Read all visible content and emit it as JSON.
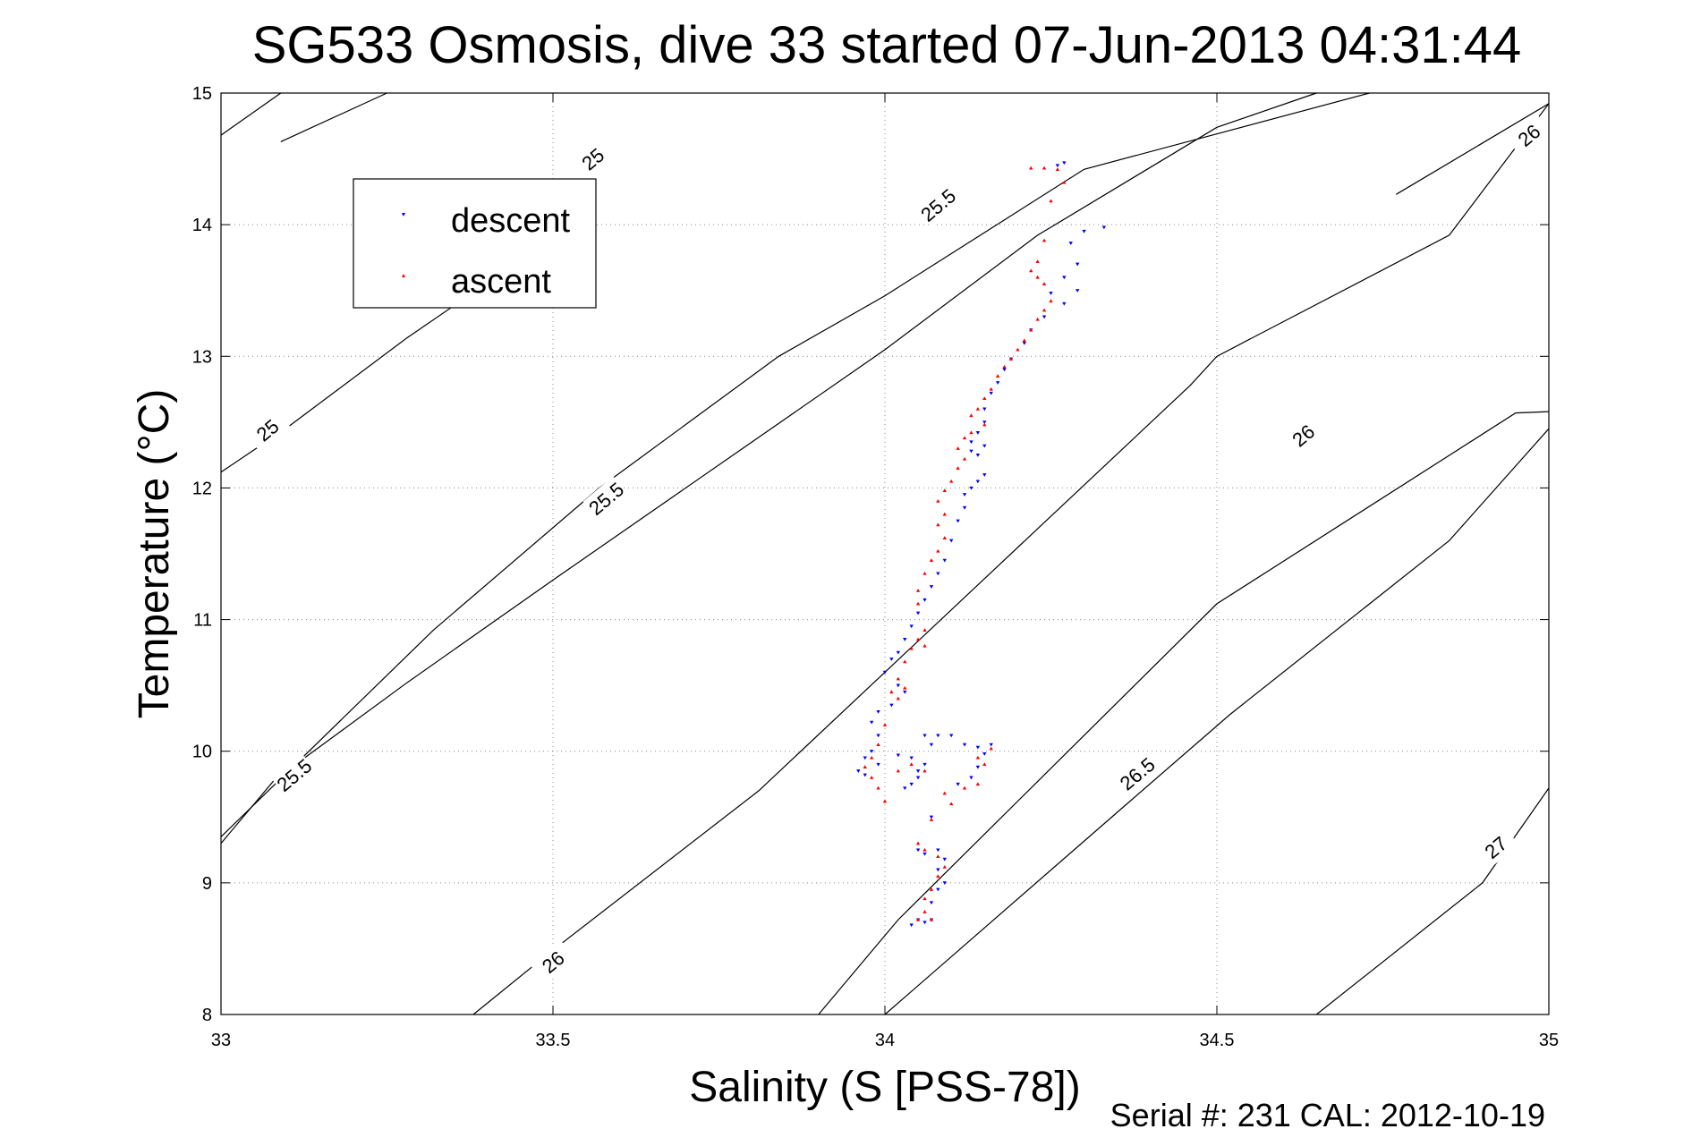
{
  "chart_data": {
    "type": "scatter",
    "title": "SG533 Osmosis, dive 33 started 07-Jun-2013 04:31:44",
    "xlabel": "Salinity (S [PSS-78])",
    "ylabel": "Temperature (°C)",
    "xlim": [
      33,
      35
    ],
    "ylim": [
      8,
      15
    ],
    "xticks": [
      "33",
      "33.5",
      "34",
      "34.5",
      "35"
    ],
    "yticks": [
      "8",
      "9",
      "10",
      "11",
      "12",
      "13",
      "14",
      "15"
    ],
    "grid": true,
    "legend_position": "top-left",
    "footer": "Serial #: 231  CAL: 2012-10-19",
    "density_contours": [
      {
        "label": "25",
        "points": [
          [
            33.0,
            14.68
          ],
          [
            33.09,
            15.0
          ]
        ],
        "label_at": [
          33.56,
          14.5
        ]
      },
      {
        "label": "25",
        "points": [
          [
            33.0,
            12.12
          ],
          [
            33.1,
            12.46
          ],
          [
            33.28,
            13.14
          ],
          [
            33.39,
            13.52
          ]
        ],
        "label_at": [
          33.07,
          12.44
        ]
      },
      {
        "label": "25.5",
        "points": [
          [
            33.09,
            14.63
          ],
          [
            33.25,
            15.0
          ]
        ],
        "label_at": [
          34.08,
          14.15
        ]
      },
      {
        "label": "25.5",
        "points": [
          [
            33.0,
            9.35
          ],
          [
            33.32,
            10.92
          ],
          [
            33.57,
            12.0
          ],
          [
            33.84,
            13.0
          ],
          [
            34.0,
            13.46
          ],
          [
            34.3,
            14.42
          ],
          [
            34.73,
            15.0
          ]
        ],
        "label_at": [
          33.58,
          11.92
        ]
      },
      {
        "label": "25.5",
        "points": [
          [
            33.0,
            9.3
          ],
          [
            33.08,
            9.78
          ],
          [
            33.28,
            10.52
          ],
          [
            33.5,
            11.3
          ],
          [
            34.0,
            13.05
          ],
          [
            34.23,
            13.92
          ],
          [
            34.5,
            14.74
          ],
          [
            34.65,
            15.0
          ]
        ],
        "label_at": [
          33.11,
          9.82
        ]
      },
      {
        "label": "26",
        "points": [
          [
            33.38,
            8.0
          ],
          [
            33.49,
            8.45
          ],
          [
            33.81,
            9.7
          ],
          [
            34.0,
            10.6
          ],
          [
            34.46,
            12.78
          ],
          [
            34.5,
            13.0
          ],
          [
            34.85,
            13.92
          ],
          [
            35.0,
            14.92
          ]
        ],
        "label_at": [
          33.5,
          8.4
        ]
      },
      {
        "label": "26",
        "points": [
          [
            33.9,
            8.0
          ],
          [
            34.02,
            8.72
          ],
          [
            34.5,
            11.12
          ],
          [
            34.95,
            12.57
          ],
          [
            35.0,
            12.58
          ]
        ],
        "label_at": [
          34.63,
          12.4
        ]
      },
      {
        "label": "26",
        "points": [
          [
            34.77,
            14.23
          ],
          [
            35.0,
            14.92
          ]
        ],
        "label_at": [
          34.97,
          14.68
        ]
      },
      {
        "label": "26.5",
        "points": [
          [
            34.0,
            8.0
          ],
          [
            34.36,
            9.58
          ],
          [
            34.52,
            10.28
          ],
          [
            34.85,
            11.6
          ],
          [
            35.0,
            12.45
          ]
        ],
        "label_at": [
          34.38,
          9.83
        ]
      },
      {
        "label": "27",
        "points": [
          [
            34.65,
            8.0
          ],
          [
            34.9,
            9.0
          ],
          [
            35.0,
            9.72
          ]
        ],
        "label_at": [
          34.92,
          9.27
        ]
      }
    ],
    "series": [
      {
        "name": "descent",
        "color": "#0000ff",
        "marker": "triangle-down",
        "points": [
          [
            34.27,
            14.47
          ],
          [
            34.26,
            14.45
          ],
          [
            34.3,
            13.95
          ],
          [
            34.33,
            13.98
          ],
          [
            34.28,
            13.86
          ],
          [
            34.29,
            13.7
          ],
          [
            34.27,
            13.6
          ],
          [
            34.29,
            13.5
          ],
          [
            34.25,
            13.48
          ],
          [
            34.27,
            13.4
          ],
          [
            34.24,
            13.3
          ],
          [
            34.22,
            13.2
          ],
          [
            34.21,
            13.1
          ],
          [
            34.19,
            12.98
          ],
          [
            34.18,
            12.9
          ],
          [
            34.17,
            12.8
          ],
          [
            34.16,
            12.72
          ],
          [
            34.15,
            12.6
          ],
          [
            34.15,
            12.5
          ],
          [
            34.14,
            12.42
          ],
          [
            34.13,
            12.35
          ],
          [
            34.15,
            12.32
          ],
          [
            34.14,
            12.25
          ],
          [
            34.13,
            12.28
          ],
          [
            34.15,
            12.1
          ],
          [
            34.14,
            12.05
          ],
          [
            34.13,
            12.0
          ],
          [
            34.12,
            11.95
          ],
          [
            34.12,
            11.85
          ],
          [
            34.11,
            11.75
          ],
          [
            34.1,
            11.6
          ],
          [
            34.09,
            11.45
          ],
          [
            34.08,
            11.35
          ],
          [
            34.07,
            11.25
          ],
          [
            34.06,
            11.15
          ],
          [
            34.05,
            11.05
          ],
          [
            34.04,
            10.95
          ],
          [
            34.03,
            10.85
          ],
          [
            34.02,
            10.75
          ],
          [
            34.01,
            10.7
          ],
          [
            34.0,
            10.6
          ],
          [
            34.02,
            10.5
          ],
          [
            34.03,
            10.45
          ],
          [
            34.01,
            10.35
          ],
          [
            33.99,
            10.3
          ],
          [
            33.98,
            10.22
          ],
          [
            33.99,
            10.12
          ],
          [
            33.98,
            10.0
          ],
          [
            33.97,
            9.95
          ],
          [
            33.96,
            9.85
          ],
          [
            33.97,
            9.82
          ],
          [
            33.99,
            9.9
          ],
          [
            34.02,
            9.97
          ],
          [
            34.04,
            9.95
          ],
          [
            34.06,
            9.9
          ],
          [
            34.05,
            9.8
          ],
          [
            34.04,
            9.75
          ],
          [
            34.03,
            9.72
          ],
          [
            34.05,
            9.85
          ],
          [
            34.07,
            10.05
          ],
          [
            34.06,
            10.12
          ],
          [
            34.08,
            10.12
          ],
          [
            34.1,
            10.12
          ],
          [
            34.12,
            10.05
          ],
          [
            34.14,
            10.03
          ],
          [
            34.16,
            10.05
          ],
          [
            34.15,
            9.98
          ],
          [
            34.14,
            9.88
          ],
          [
            34.13,
            9.8
          ],
          [
            34.11,
            9.75
          ],
          [
            34.07,
            9.5
          ],
          [
            34.05,
            9.25
          ],
          [
            34.06,
            9.22
          ],
          [
            34.08,
            9.25
          ],
          [
            34.09,
            9.18
          ],
          [
            34.08,
            9.1
          ],
          [
            34.09,
            9.0
          ],
          [
            34.08,
            8.95
          ],
          [
            34.07,
            8.85
          ],
          [
            34.05,
            8.72
          ],
          [
            34.04,
            8.68
          ],
          [
            34.06,
            8.7
          ],
          [
            34.07,
            8.72
          ]
        ]
      },
      {
        "name": "ascent",
        "color": "#ff0000",
        "marker": "triangle-up",
        "points": [
          [
            34.22,
            14.43
          ],
          [
            34.24,
            14.43
          ],
          [
            34.26,
            14.42
          ],
          [
            34.25,
            14.18
          ],
          [
            34.27,
            14.32
          ],
          [
            34.24,
            13.88
          ],
          [
            34.23,
            13.72
          ],
          [
            34.22,
            13.65
          ],
          [
            34.23,
            13.6
          ],
          [
            34.24,
            13.55
          ],
          [
            34.25,
            13.42
          ],
          [
            34.24,
            13.35
          ],
          [
            34.23,
            13.28
          ],
          [
            34.22,
            13.2
          ],
          [
            34.21,
            13.12
          ],
          [
            34.2,
            13.05
          ],
          [
            34.19,
            12.98
          ],
          [
            34.18,
            12.92
          ],
          [
            34.17,
            12.85
          ],
          [
            34.16,
            12.75
          ],
          [
            34.15,
            12.68
          ],
          [
            34.14,
            12.6
          ],
          [
            34.13,
            12.55
          ],
          [
            34.15,
            12.48
          ],
          [
            34.13,
            12.42
          ],
          [
            34.12,
            12.38
          ],
          [
            34.11,
            12.3
          ],
          [
            34.12,
            12.22
          ],
          [
            34.11,
            12.15
          ],
          [
            34.1,
            12.05
          ],
          [
            34.09,
            11.98
          ],
          [
            34.08,
            11.9
          ],
          [
            34.09,
            11.8
          ],
          [
            34.08,
            11.72
          ],
          [
            34.09,
            11.62
          ],
          [
            34.08,
            11.52
          ],
          [
            34.07,
            11.45
          ],
          [
            34.06,
            11.35
          ],
          [
            34.05,
            11.22
          ],
          [
            34.05,
            11.12
          ],
          [
            34.06,
            10.92
          ],
          [
            34.05,
            10.85
          ],
          [
            34.06,
            10.8
          ],
          [
            34.04,
            10.78
          ],
          [
            34.03,
            10.68
          ],
          [
            34.02,
            10.55
          ],
          [
            34.01,
            10.45
          ],
          [
            34.02,
            10.4
          ],
          [
            34.03,
            10.48
          ],
          [
            34.0,
            10.2
          ],
          [
            33.99,
            10.05
          ],
          [
            33.98,
            9.95
          ],
          [
            33.97,
            9.88
          ],
          [
            33.98,
            9.8
          ],
          [
            33.99,
            9.72
          ],
          [
            34.0,
            9.62
          ],
          [
            34.02,
            9.85
          ],
          [
            34.04,
            9.9
          ],
          [
            34.06,
            9.85
          ],
          [
            34.09,
            9.68
          ],
          [
            34.12,
            9.72
          ],
          [
            34.14,
            9.75
          ],
          [
            34.15,
            9.9
          ],
          [
            34.16,
            10.02
          ],
          [
            34.14,
            9.95
          ],
          [
            34.1,
            9.6
          ],
          [
            34.07,
            9.48
          ],
          [
            34.05,
            9.3
          ],
          [
            34.06,
            9.25
          ],
          [
            34.08,
            9.2
          ],
          [
            34.09,
            9.12
          ],
          [
            34.08,
            9.05
          ],
          [
            34.07,
            8.95
          ],
          [
            34.06,
            8.88
          ],
          [
            34.06,
            8.78
          ],
          [
            34.05,
            8.72
          ],
          [
            34.07,
            8.72
          ]
        ]
      }
    ]
  }
}
